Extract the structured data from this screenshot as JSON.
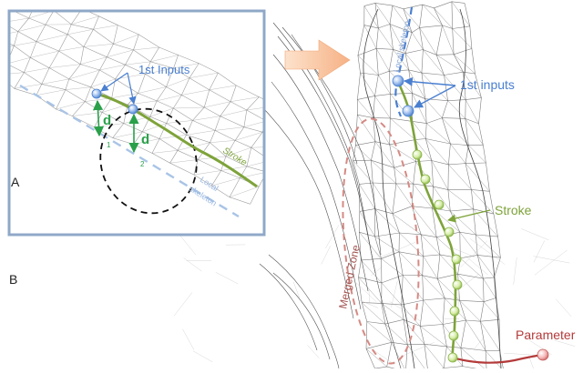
{
  "inset": {
    "panel_label": "A",
    "inputs_label": "1st Inputs",
    "distance_label_1": "d",
    "distance_label_2": "d",
    "sub_1": "1",
    "sub_2": "2",
    "stroke_label": "Stroke",
    "skeleton_label_line1": "Local",
    "skeleton_label_line2": "skeleton"
  },
  "main": {
    "panel_label": "B",
    "inputs_label": "1st inputs",
    "stroke_label": "Stroke",
    "merged_zone_label": "Merged Zone",
    "skeleton_label": "Local skeleton",
    "parameter_label": "Parameter"
  },
  "colors": {
    "input_blue": "#4a7fd0",
    "stroke_green": "#7ea33a",
    "node_green": "#cfe89a",
    "merged_red": "#d58a84",
    "param_red": "#b43a3a",
    "arrow_fill": "#f9c6a1",
    "frame_blue": "#8fa8c8",
    "mesh_gray": "#555555"
  }
}
